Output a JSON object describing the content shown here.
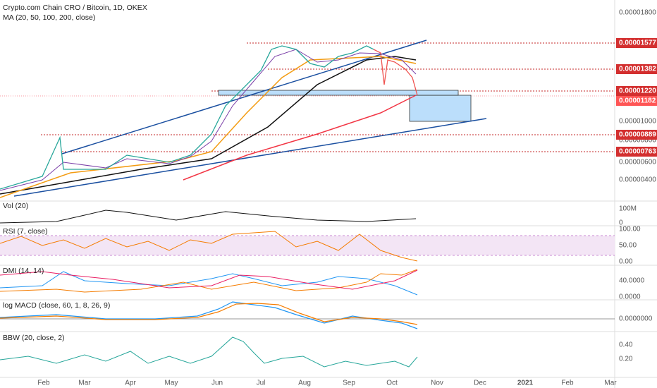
{
  "header": {
    "title": "Crypto.com Chain CRO / Bitcoin, 1D, OKEX",
    "indicator": "MA (20, 50, 100, 200, close)"
  },
  "price_axis": {
    "labels": [
      "0.00001800",
      "0.00001000",
      "0.00000800",
      "0.00000600",
      "0.00000400"
    ]
  },
  "price_tags": [
    "0.00001577",
    "0.00001382",
    "0.00001220",
    "0.00001182",
    "0.00000889",
    "0.00000763"
  ],
  "panes": [
    {
      "title": "Vol (20)",
      "labels": [
        "100M",
        "0"
      ]
    },
    {
      "title": "RSI (7, close)",
      "labels": [
        "100.00",
        "50.00",
        "0.00"
      ]
    },
    {
      "title": "DMI (14, 14)",
      "labels": [
        "40.0000",
        "0.0000"
      ]
    },
    {
      "title": "log MACD (close, 60, 1, 8, 26, 9)",
      "labels": [
        "0.0000000"
      ]
    },
    {
      "title": "BBW (20, close, 2)",
      "labels": [
        "0.40",
        "0.20"
      ]
    }
  ],
  "time_axis": [
    "Feb",
    "Mar",
    "Apr",
    "May",
    "Jun",
    "Jul",
    "Aug",
    "Sep",
    "Oct",
    "Nov",
    "Dec",
    "2021",
    "Feb",
    "Mar"
  ]
}
